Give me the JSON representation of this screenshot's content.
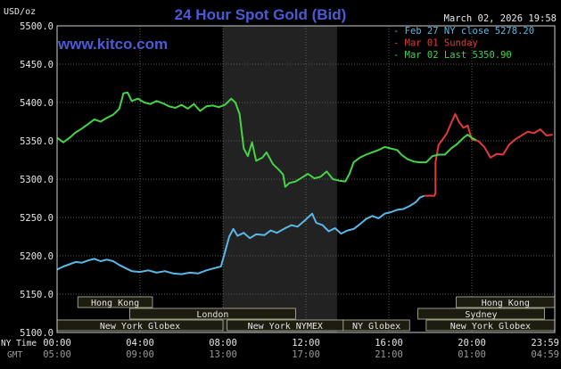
{
  "colors": {
    "background": "#000000",
    "frame": "#cfcfcf",
    "grid": "#5a5a5a",
    "title": "#4a5bd6",
    "brand": "#4a5bd6",
    "text": "#e6e6e6",
    "feb27": "#59b8e6",
    "mar01": "#e23a3a",
    "mar02": "#44d444",
    "session_bar": "#1c1c10",
    "session_border": "#bdbda0",
    "nymex_shade": "#222222"
  },
  "chart_data": {
    "type": "line",
    "title": "24 Hour Spot Gold (Bid)",
    "unit_label": "USD/oz",
    "brand": "www.kitco.com",
    "date_label": "March 02, 2026 19:58",
    "ylim": [
      5100,
      5500
    ],
    "xlim": [
      0,
      24
    ],
    "grid": true,
    "legend_position": "top-right",
    "y_ticks": [
      "5500.0",
      "5450.0",
      "5400.0",
      "5350.0",
      "5300.0",
      "5250.0",
      "5200.0",
      "5150.0",
      "5100.0"
    ],
    "y_tick_values": [
      5500,
      5450,
      5400,
      5350,
      5300,
      5250,
      5200,
      5150,
      5100
    ],
    "x_tick_values": [
      0,
      4,
      8,
      12,
      16,
      20,
      24
    ],
    "ny_time_label": "NY Time",
    "gmt_label": "GMT",
    "ny_time_ticks": [
      "00:00",
      "04:00",
      "08:00",
      "12:00",
      "16:00",
      "20:00",
      "23:59"
    ],
    "gmt_ticks": [
      "05:00",
      "09:00",
      "13:00",
      "17:00",
      "21:00",
      "01:00",
      "04:59"
    ],
    "nymex_shade_range": [
      8.0,
      13.5
    ],
    "legend": [
      {
        "marker": "-",
        "text": "Feb 27 NY close 5278.20",
        "color_key": "feb27"
      },
      {
        "marker": "-",
        "text": "Mar 01 Sunday",
        "color_key": "mar01"
      },
      {
        "marker": "-",
        "text": "Mar 02 Last 5350.90",
        "color_key": "mar02"
      }
    ],
    "sessions": [
      {
        "label": "Hong Kong",
        "start": 1.0,
        "end": 4.6,
        "row": 0
      },
      {
        "label": "Hong Kong",
        "start": 19.25,
        "end": 24.0,
        "row": 0
      },
      {
        "label": "London",
        "start": 3.5,
        "end": 11.5,
        "row": 1
      },
      {
        "label": "Sydney",
        "start": 17.4,
        "end": 23.5,
        "row": 1
      },
      {
        "label": "New York Globex",
        "start": 0.0,
        "end": 8.0,
        "row": 2
      },
      {
        "label": "New York NYMEX",
        "start": 8.2,
        "end": 13.8,
        "row": 2
      },
      {
        "label": "NY Globex",
        "start": 13.8,
        "end": 17.0,
        "row": 2
      },
      {
        "label": "New York Globex",
        "start": 17.8,
        "end": 24.0,
        "row": 2
      }
    ],
    "series": [
      {
        "name": "Feb 27",
        "color_key": "feb27",
        "points": [
          [
            0,
            5182
          ],
          [
            0.3,
            5186
          ],
          [
            0.6,
            5189
          ],
          [
            0.9,
            5192
          ],
          [
            1.2,
            5191
          ],
          [
            1.5,
            5194
          ],
          [
            1.8,
            5196
          ],
          [
            2.1,
            5193
          ],
          [
            2.4,
            5195
          ],
          [
            2.7,
            5193
          ],
          [
            3.0,
            5188
          ],
          [
            3.3,
            5184
          ],
          [
            3.6,
            5180
          ],
          [
            4.0,
            5179
          ],
          [
            4.4,
            5181
          ],
          [
            4.8,
            5178
          ],
          [
            5.2,
            5180
          ],
          [
            5.6,
            5177
          ],
          [
            6.0,
            5176
          ],
          [
            6.4,
            5178
          ],
          [
            6.8,
            5177
          ],
          [
            7.2,
            5181
          ],
          [
            7.6,
            5184
          ],
          [
            7.9,
            5186
          ],
          [
            8.1,
            5205
          ],
          [
            8.3,
            5225
          ],
          [
            8.5,
            5235
          ],
          [
            8.7,
            5226
          ],
          [
            9.0,
            5230
          ],
          [
            9.3,
            5223
          ],
          [
            9.6,
            5228
          ],
          [
            10.0,
            5227
          ],
          [
            10.3,
            5233
          ],
          [
            10.6,
            5230
          ],
          [
            11.0,
            5236
          ],
          [
            11.3,
            5240
          ],
          [
            11.6,
            5238
          ],
          [
            11.9,
            5245
          ],
          [
            12.1,
            5250
          ],
          [
            12.3,
            5255
          ],
          [
            12.5,
            5243
          ],
          [
            12.8,
            5240
          ],
          [
            13.1,
            5232
          ],
          [
            13.4,
            5236
          ],
          [
            13.7,
            5229
          ],
          [
            14.0,
            5233
          ],
          [
            14.3,
            5235
          ],
          [
            14.6,
            5241
          ],
          [
            14.9,
            5248
          ],
          [
            15.2,
            5252
          ],
          [
            15.5,
            5249
          ],
          [
            15.8,
            5255
          ],
          [
            16.1,
            5257
          ],
          [
            16.4,
            5260
          ],
          [
            16.7,
            5261
          ],
          [
            17.0,
            5265
          ],
          [
            17.3,
            5270
          ],
          [
            17.5,
            5276
          ],
          [
            17.7,
            5278.2
          ]
        ]
      },
      {
        "name": "Mar 01",
        "color_key": "mar01",
        "points": [
          [
            17.7,
            5278.2
          ],
          [
            18.0,
            5278.5
          ],
          [
            18.2,
            5278.3
          ],
          [
            18.25,
            5282
          ],
          [
            18.25,
            5300
          ],
          [
            18.25,
            5322
          ],
          [
            18.4,
            5345
          ],
          [
            18.6,
            5352
          ],
          [
            18.8,
            5360
          ],
          [
            19.0,
            5373
          ],
          [
            19.2,
            5385
          ],
          [
            19.4,
            5374
          ],
          [
            19.6,
            5367
          ],
          [
            19.8,
            5370
          ],
          [
            20.0,
            5352
          ],
          [
            20.3,
            5350
          ],
          [
            20.6,
            5342
          ],
          [
            20.9,
            5328
          ],
          [
            21.2,
            5333
          ],
          [
            21.5,
            5332
          ],
          [
            21.8,
            5345
          ],
          [
            22.1,
            5352
          ],
          [
            22.4,
            5357
          ],
          [
            22.7,
            5362
          ],
          [
            23.0,
            5360
          ],
          [
            23.3,
            5365
          ],
          [
            23.6,
            5357
          ],
          [
            23.9,
            5358
          ]
        ]
      },
      {
        "name": "Mar 02",
        "color_key": "mar02",
        "points": [
          [
            0,
            5354
          ],
          [
            0.3,
            5348
          ],
          [
            0.6,
            5354
          ],
          [
            0.9,
            5361
          ],
          [
            1.2,
            5366
          ],
          [
            1.5,
            5372
          ],
          [
            1.8,
            5378
          ],
          [
            2.1,
            5375
          ],
          [
            2.4,
            5380
          ],
          [
            2.7,
            5384
          ],
          [
            3.0,
            5392
          ],
          [
            3.2,
            5412
          ],
          [
            3.4,
            5413
          ],
          [
            3.6,
            5402
          ],
          [
            3.9,
            5405
          ],
          [
            4.2,
            5400
          ],
          [
            4.5,
            5398
          ],
          [
            4.8,
            5402
          ],
          [
            5.1,
            5399
          ],
          [
            5.4,
            5395
          ],
          [
            5.7,
            5393
          ],
          [
            6.0,
            5397
          ],
          [
            6.3,
            5392
          ],
          [
            6.6,
            5398
          ],
          [
            6.9,
            5389
          ],
          [
            7.2,
            5395
          ],
          [
            7.5,
            5396
          ],
          [
            7.8,
            5394
          ],
          [
            8.1,
            5397
          ],
          [
            8.4,
            5405
          ],
          [
            8.6,
            5400
          ],
          [
            8.8,
            5385
          ],
          [
            9.0,
            5340
          ],
          [
            9.2,
            5330
          ],
          [
            9.4,
            5348
          ],
          [
            9.6,
            5324
          ],
          [
            9.9,
            5328
          ],
          [
            10.1,
            5335
          ],
          [
            10.4,
            5320
          ],
          [
            10.7,
            5312
          ],
          [
            10.9,
            5306
          ],
          [
            11.0,
            5290
          ],
          [
            11.2,
            5295
          ],
          [
            11.5,
            5297
          ],
          [
            11.8,
            5302
          ],
          [
            12.1,
            5307
          ],
          [
            12.4,
            5301
          ],
          [
            12.7,
            5303
          ],
          [
            13.0,
            5310
          ],
          [
            13.3,
            5300
          ],
          [
            13.6,
            5298
          ],
          [
            13.9,
            5297
          ],
          [
            14.1,
            5307
          ],
          [
            14.3,
            5322
          ],
          [
            14.6,
            5328
          ],
          [
            14.9,
            5332
          ],
          [
            15.2,
            5335
          ],
          [
            15.5,
            5338
          ],
          [
            15.8,
            5342
          ],
          [
            16.1,
            5340
          ],
          [
            16.4,
            5338
          ],
          [
            16.6,
            5332
          ],
          [
            16.9,
            5326
          ],
          [
            17.2,
            5323
          ],
          [
            17.5,
            5322
          ],
          [
            17.8,
            5322
          ],
          [
            18.1,
            5330
          ],
          [
            18.4,
            5332
          ],
          [
            18.7,
            5332
          ],
          [
            19.0,
            5340
          ],
          [
            19.3,
            5346
          ],
          [
            19.6,
            5354
          ],
          [
            19.8,
            5358
          ],
          [
            20.0,
            5354
          ],
          [
            20.2,
            5350.9
          ]
        ]
      }
    ]
  }
}
